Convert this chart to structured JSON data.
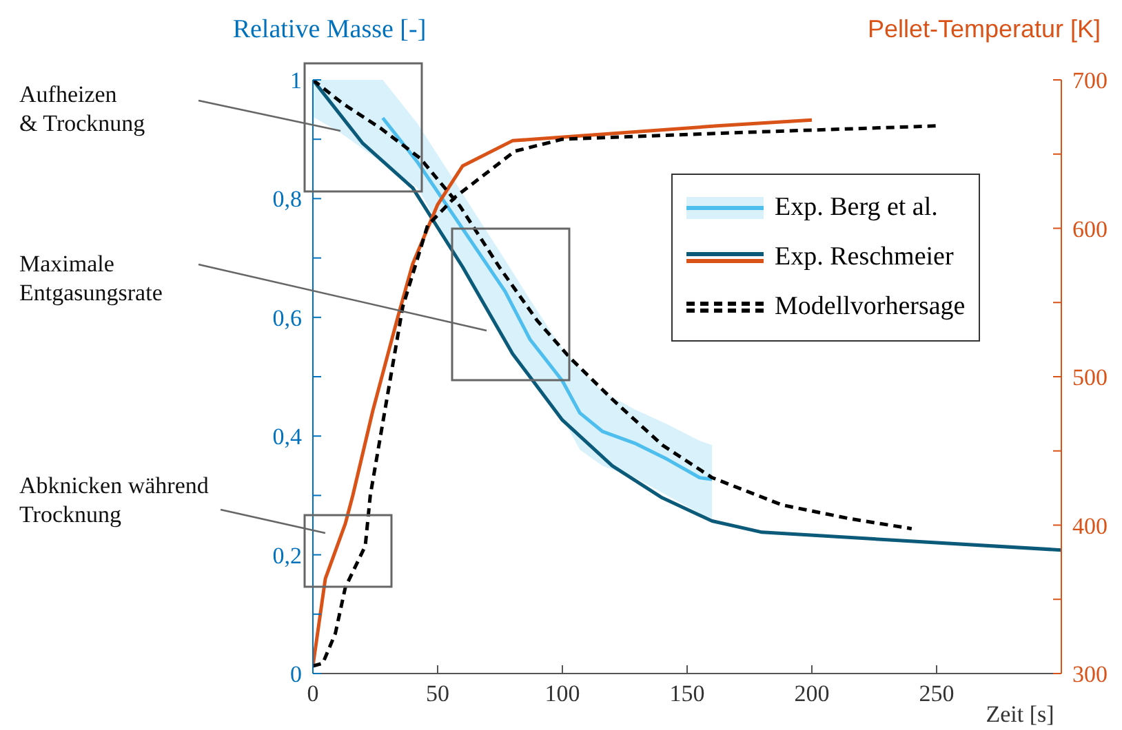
{
  "chart_data": {
    "type": "line",
    "ylabel": "Relative Masse [-]",
    "y2label": "Pellet-Temperatur [K]",
    "xlabel": "Zeit [s]",
    "xlim": [
      0,
      300
    ],
    "xticks": [
      0,
      50,
      100,
      150,
      200,
      250
    ],
    "ylim": [
      0,
      1
    ],
    "yticks": [
      0,
      {
        "value": 0.1,
        "label": null
      },
      {
        "value": 0.2,
        "label": "0,2"
      },
      {
        "value": 0.3,
        "label": null
      },
      {
        "value": 0.4,
        "label": "0,4"
      },
      {
        "value": 0.5,
        "label": null
      },
      {
        "value": 0.6,
        "label": "0,6"
      },
      {
        "value": 0.7,
        "label": null
      },
      {
        "value": 0.8,
        "label": "0,8"
      },
      {
        "value": 0.9,
        "label": null
      },
      1
    ],
    "y2lim": [
      300,
      700
    ],
    "y2ticks": [
      300,
      {
        "value": 350,
        "label": null
      },
      400,
      {
        "value": 450,
        "label": null
      },
      500,
      {
        "value": 550,
        "label": null
      },
      600,
      {
        "value": 650,
        "label": null
      },
      700
    ],
    "legend": "top right",
    "marker": "none",
    "series": [
      {
        "name": "Exp. Berg et al.",
        "color": "#4dbeee",
        "x": [
          0,
          11,
          28,
          42,
          77,
          87,
          100,
          107,
          116,
          129,
          142,
          155,
          160
        ],
        "values": [
          null,
          null,
          0.936,
          0.861,
          0.644,
          0.563,
          0.493,
          0.439,
          0.408,
          0.388,
          0.361,
          0.33,
          0.327
        ],
        "lower": [
          0.938,
          0.911,
          0.86,
          0.818,
          0.56,
          0.5,
          0.431,
          0.377,
          0.35,
          0.33,
          0.3,
          0.27,
          0.261
        ],
        "upper": [
          1,
          1,
          1,
          0.926,
          0.697,
          0.63,
          0.547,
          0.515,
          0.475,
          0.445,
          0.42,
          0.392,
          0.385
        ]
      },
      {
        "name": "Exp. Reschmeier",
        "color": "#0b5a7a",
        "x": [
          0,
          20,
          40,
          60,
          80,
          100,
          120,
          140,
          160,
          180,
          300
        ],
        "values": [
          1,
          0.893,
          0.818,
          0.685,
          0.539,
          0.427,
          0.35,
          0.296,
          0.257,
          0.238,
          0.208
        ]
      },
      {
        "color": "#d95319",
        "axis": "y2",
        "x": [
          0,
          5,
          13,
          16,
          24,
          34,
          40,
          50,
          60,
          80,
          162,
          200
        ],
        "values": [
          305,
          364,
          401,
          420,
          477,
          540,
          576,
          616,
          642,
          659,
          669,
          673
        ]
      },
      {
        "name": "Modellvorhersage",
        "color": "#000000",
        "line_style": "dashed",
        "x": [
          0,
          12,
          27,
          43,
          59,
          75,
          90,
          103,
          120,
          140,
          160,
          188,
          215,
          240
        ],
        "values": [
          1,
          0.96,
          0.919,
          0.868,
          0.787,
          0.683,
          0.594,
          0.532,
          0.462,
          0.385,
          0.33,
          0.284,
          0.261,
          0.244
        ]
      },
      {
        "color": "#000000",
        "line_style": "dashed",
        "axis": "y2",
        "x": [
          0,
          4,
          9,
          13,
          21,
          23,
          36,
          46,
          57,
          81,
          100,
          162,
          250
        ],
        "values": [
          305,
          307,
          327,
          358,
          386,
          420,
          547,
          602,
          621,
          652,
          660,
          664,
          669
        ]
      }
    ],
    "annotations": [
      "Aufheizen\n& Trocknung",
      "Maximale\nEntgasungsrate",
      "Abknicken während\nTrocknung"
    ]
  }
}
